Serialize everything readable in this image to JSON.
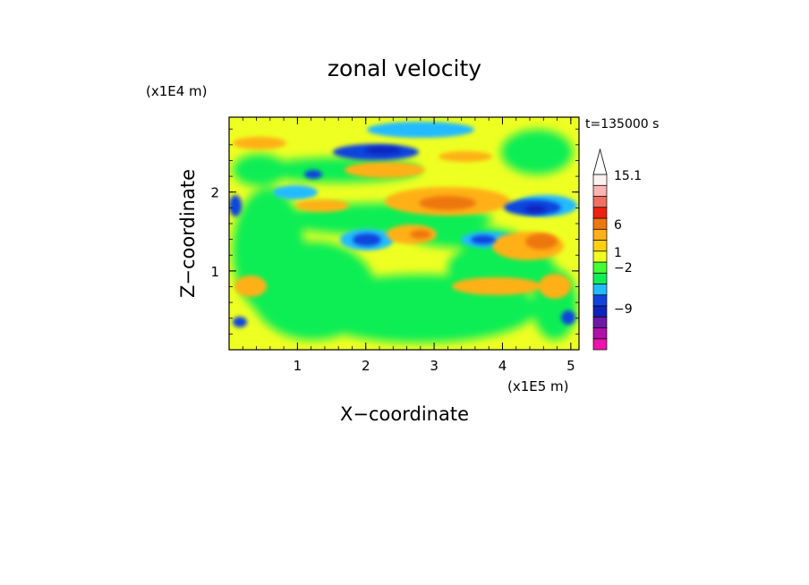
{
  "chart_data": {
    "type": "heatmap",
    "title": "zonal velocity",
    "xlabel": "X−coordinate",
    "ylabel": "Z−coordinate",
    "x_scale_label": "(x1E5 m)",
    "y_scale_label": "(x1E4 m)",
    "time_label": "t=135000 s",
    "xlim": [
      0,
      5.12
    ],
    "ylim": [
      0,
      2.95
    ],
    "x_ticks": [
      1,
      2,
      3,
      4,
      5
    ],
    "x_tick_labels": [
      "1",
      "2",
      "3",
      "4",
      "5"
    ],
    "y_ticks": [
      1,
      2
    ],
    "y_tick_labels": [
      "1",
      "2"
    ],
    "colorbar": {
      "colors": [
        "#ee11aa",
        "#b011a8",
        "#6f18a6",
        "#1122bb",
        "#1144dd",
        "#22bbff",
        "#11ee55",
        "#44ff33",
        "#eeff22",
        "#ffd011",
        "#ffb018",
        "#ee7711",
        "#ee2211",
        "#ef6f62",
        "#fbb4b0",
        "#fff1f1"
      ],
      "tick_labels": [
        "15.1",
        "6",
        "1",
        "−2",
        "−9"
      ],
      "extend": "max"
    },
    "features": [
      {
        "x": 2.2,
        "z": 2.5,
        "kind": "jet-negative"
      },
      {
        "x": 4.5,
        "z": 1.85,
        "kind": "jet-negative"
      },
      {
        "x": 2.0,
        "z": 1.4,
        "kind": "jet-negative"
      },
      {
        "x": 3.7,
        "z": 1.4,
        "kind": "jet-negative"
      },
      {
        "x": 2.5,
        "z": 2.05,
        "kind": "jet-positive"
      },
      {
        "x": 4.6,
        "z": 1.4,
        "kind": "jet-positive"
      },
      {
        "x": 2.7,
        "z": 1.45,
        "kind": "jet-positive"
      }
    ]
  }
}
